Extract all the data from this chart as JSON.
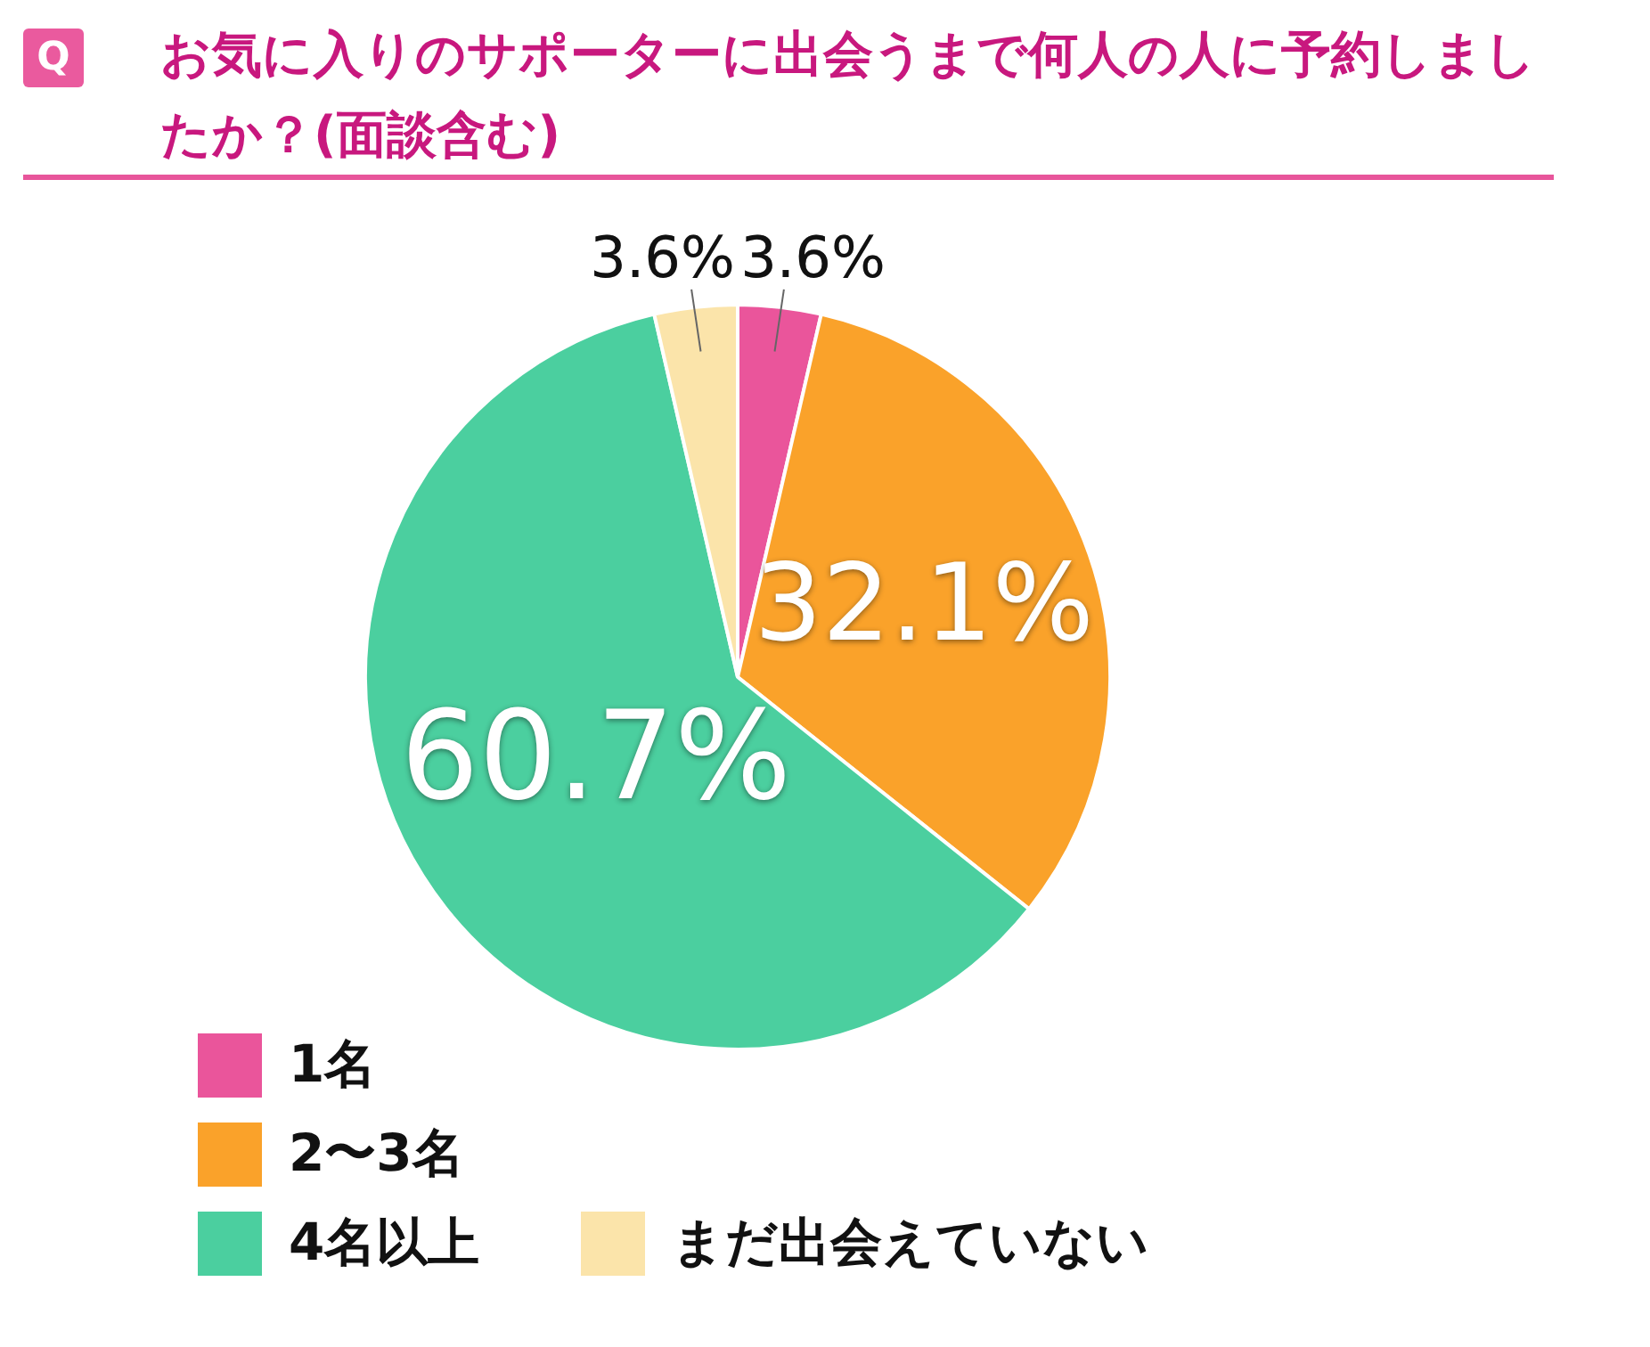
{
  "chart_data": {
    "type": "pie",
    "title": "お気に入りのサポーターに出会うまで何人の人に予約しましたか？(面談含む)",
    "annotations": [
      "Q"
    ],
    "categories": [
      "1名",
      "2〜3名",
      "4名以上",
      "まだ出会えていない"
    ],
    "values": [
      3.6,
      32.1,
      60.7,
      3.6
    ],
    "colors": [
      "#ea559b",
      "#faa22a",
      "#4bcf9f",
      "#fbe4aa"
    ],
    "value_labels": [
      "3.6%",
      "32.1%",
      "60.7%",
      "3.6%"
    ],
    "legend": "bottom"
  }
}
